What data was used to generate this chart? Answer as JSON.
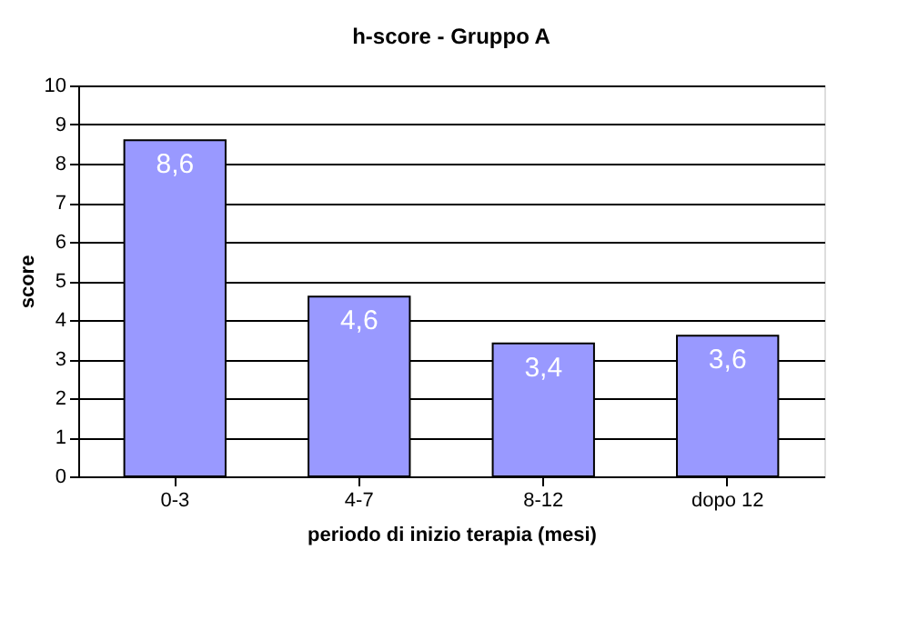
{
  "chart_data": {
    "type": "bar",
    "title": "h-score - Gruppo A",
    "xlabel": "periodo di inizio terapia (mesi)",
    "ylabel": "score",
    "categories": [
      "0-3",
      "4-7",
      "8-12",
      "dopo 12"
    ],
    "values": [
      8.6,
      4.6,
      3.4,
      3.6
    ],
    "value_labels": [
      "8,6",
      "4,6",
      "3,4",
      "3,6"
    ],
    "color": "#9999ff",
    "ylim": [
      0,
      10
    ],
    "yticks": [
      0,
      1,
      2,
      3,
      4,
      5,
      6,
      7,
      8,
      9,
      10
    ],
    "grid": "y"
  }
}
